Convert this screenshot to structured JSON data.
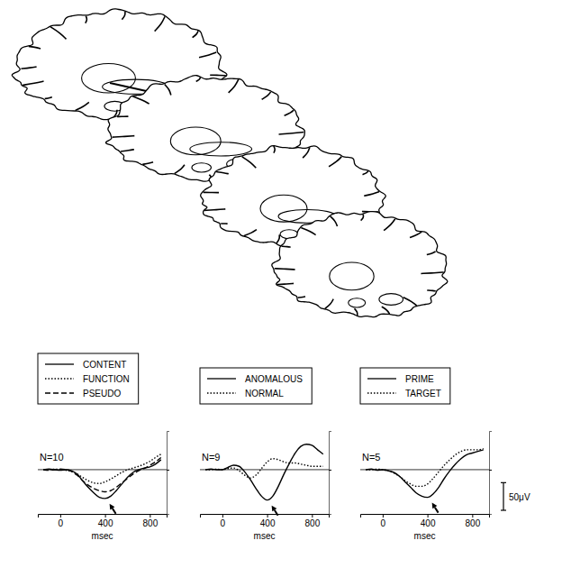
{
  "chart_data": [
    {
      "type": "line",
      "annotation": "N=10",
      "x_label": "msec",
      "x": [
        -150,
        -100,
        -50,
        0,
        50,
        100,
        150,
        200,
        250,
        300,
        350,
        400,
        450,
        500,
        550,
        600,
        650,
        700,
        750,
        800,
        850,
        900
      ],
      "series": [
        {
          "name": "CONTENT",
          "color": "#000000",
          "line_style": "solid",
          "values": [
            0,
            1,
            0,
            -1,
            0,
            -2,
            -8,
            -20,
            -32,
            -42,
            -50,
            -52,
            -48,
            -38,
            -26,
            -14,
            -5,
            0,
            3,
            5,
            10,
            18
          ]
        },
        {
          "name": "FUNCTION",
          "color": "#000000",
          "line_style": "dotted",
          "values": [
            0,
            0,
            1,
            0,
            -1,
            -3,
            -8,
            -14,
            -20,
            -24,
            -25,
            -22,
            -17,
            -11,
            -5,
            0,
            3,
            6,
            10,
            15,
            22,
            28
          ]
        },
        {
          "name": "PSEUDO",
          "color": "#000000",
          "line_style": "dashed",
          "values": [
            0,
            -1,
            0,
            1,
            0,
            -3,
            -10,
            -20,
            -28,
            -34,
            -38,
            -40,
            -38,
            -32,
            -24,
            -16,
            -8,
            -2,
            2,
            8,
            14,
            22
          ]
        }
      ],
      "xlim": [
        -200,
        950
      ],
      "xticks": [
        0,
        400,
        800
      ],
      "ylim": [
        -80,
        70
      ],
      "yticks": [
        0
      ],
      "grid": true,
      "tick_labels": "x",
      "legend": "top"
    },
    {
      "type": "line",
      "annotation": "N=9",
      "x_label": "msec",
      "x": [
        -150,
        -100,
        -50,
        0,
        50,
        100,
        150,
        200,
        250,
        300,
        350,
        400,
        450,
        500,
        550,
        600,
        650,
        700,
        750,
        800,
        850,
        900
      ],
      "series": [
        {
          "name": "ANOMALOUS",
          "color": "#000000",
          "line_style": "solid",
          "values": [
            0,
            1,
            0,
            0,
            4,
            8,
            6,
            -4,
            -18,
            -34,
            -48,
            -55,
            -48,
            -30,
            -8,
            12,
            30,
            42,
            46,
            44,
            36,
            28
          ]
        },
        {
          "name": "NORMAL",
          "color": "#000000",
          "line_style": "dotted",
          "values": [
            0,
            0,
            1,
            0,
            2,
            3,
            -2,
            -10,
            -15,
            -10,
            2,
            14,
            20,
            18,
            14,
            12,
            12,
            10,
            8,
            6,
            6,
            6
          ]
        }
      ],
      "xlim": [
        -200,
        950
      ],
      "xticks": [
        0,
        400,
        800
      ],
      "ylim": [
        -80,
        70
      ],
      "yticks": [
        0
      ],
      "grid": true,
      "tick_labels": "x",
      "legend": "top"
    },
    {
      "type": "line",
      "annotation": "N=5",
      "x_label": "msec",
      "x": [
        -150,
        -100,
        -50,
        0,
        50,
        100,
        150,
        200,
        250,
        300,
        350,
        400,
        450,
        500,
        550,
        600,
        650,
        700,
        750,
        800,
        850,
        900
      ],
      "series": [
        {
          "name": "PRIME",
          "color": "#000000",
          "line_style": "solid",
          "values": [
            0,
            1,
            -1,
            0,
            -2,
            -5,
            -12,
            -22,
            -32,
            -42,
            -48,
            -50,
            -44,
            -32,
            -16,
            -2,
            10,
            20,
            27,
            30,
            33,
            36
          ]
        },
        {
          "name": "TARGET",
          "color": "#000000",
          "line_style": "dotted",
          "values": [
            0,
            0,
            1,
            0,
            -2,
            -6,
            -12,
            -20,
            -26,
            -30,
            -30,
            -26,
            -16,
            -4,
            8,
            18,
            27,
            33,
            36,
            36,
            36,
            38
          ]
        }
      ],
      "xlim": [
        -200,
        950
      ],
      "xticks": [
        0,
        400,
        800
      ],
      "ylim": [
        -80,
        70
      ],
      "yticks": [
        0
      ],
      "grid": true,
      "tick_labels": "x",
      "legend": "top",
      "scale_bar": {
        "value": 50,
        "label": "50μV"
      }
    }
  ]
}
